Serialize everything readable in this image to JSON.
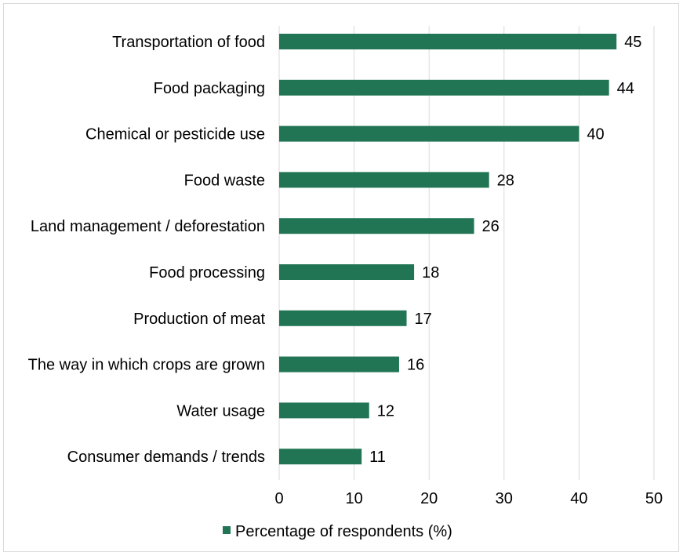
{
  "chart_data": {
    "type": "bar",
    "orientation": "horizontal",
    "title": "",
    "xlabel": "",
    "ylabel": "",
    "categories": [
      "Transportation of food",
      "Food packaging",
      "Chemical or pesticide use",
      "Food waste",
      "Land management / deforestation",
      "Food processing",
      "Production of meat",
      "The way in which crops are grown",
      "Water usage",
      "Consumer demands / trends"
    ],
    "series": [
      {
        "name": "Percentage of respondents (%)",
        "values": [
          45,
          44,
          40,
          28,
          26,
          18,
          17,
          16,
          12,
          11
        ],
        "color": "#217554"
      }
    ],
    "xlim": [
      0,
      50
    ],
    "xticks": [
      "0",
      "10",
      "20",
      "30",
      "40",
      "50"
    ],
    "grid": true,
    "legend": "bottom-center",
    "data_labels": [
      "45",
      "44",
      "40",
      "28",
      "26",
      "18",
      "17",
      "16",
      "12",
      "11"
    ]
  }
}
